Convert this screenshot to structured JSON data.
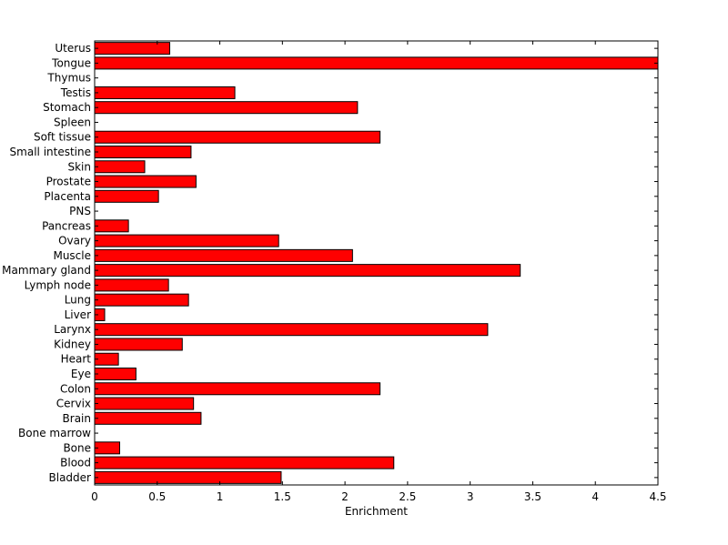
{
  "chart_data": {
    "type": "bar",
    "orientation": "horizontal",
    "xlabel": "Enrichment",
    "ylabel": "",
    "title": "",
    "xlim": [
      0,
      4.5
    ],
    "xticks": [
      "0",
      "0.5",
      "1",
      "1.5",
      "2",
      "2.5",
      "3",
      "3.5",
      "4",
      "4.5"
    ],
    "grid": false,
    "bar_color": "#ff0000",
    "bar_edge_color": "#000000",
    "categories": [
      "Uterus",
      "Tongue",
      "Thymus",
      "Testis",
      "Stomach",
      "Spleen",
      "Soft tissue",
      "Small intestine",
      "Skin",
      "Prostate",
      "Placenta",
      "PNS",
      "Pancreas",
      "Ovary",
      "Muscle",
      "Mammary gland",
      "Lymph node",
      "Lung",
      "Liver",
      "Larynx",
      "Kidney",
      "Heart",
      "Eye",
      "Colon",
      "Cervix",
      "Brain",
      "Bone marrow",
      "Bone",
      "Blood",
      "Bladder"
    ],
    "values": [
      0.6,
      4.5,
      0,
      1.12,
      2.1,
      0,
      2.28,
      0.77,
      0.4,
      0.81,
      0.51,
      0,
      0.27,
      1.47,
      2.06,
      3.4,
      0.59,
      0.75,
      0.08,
      3.14,
      0.7,
      0.19,
      0.33,
      2.28,
      0.79,
      0.85,
      0,
      0.2,
      2.39,
      1.49
    ]
  }
}
